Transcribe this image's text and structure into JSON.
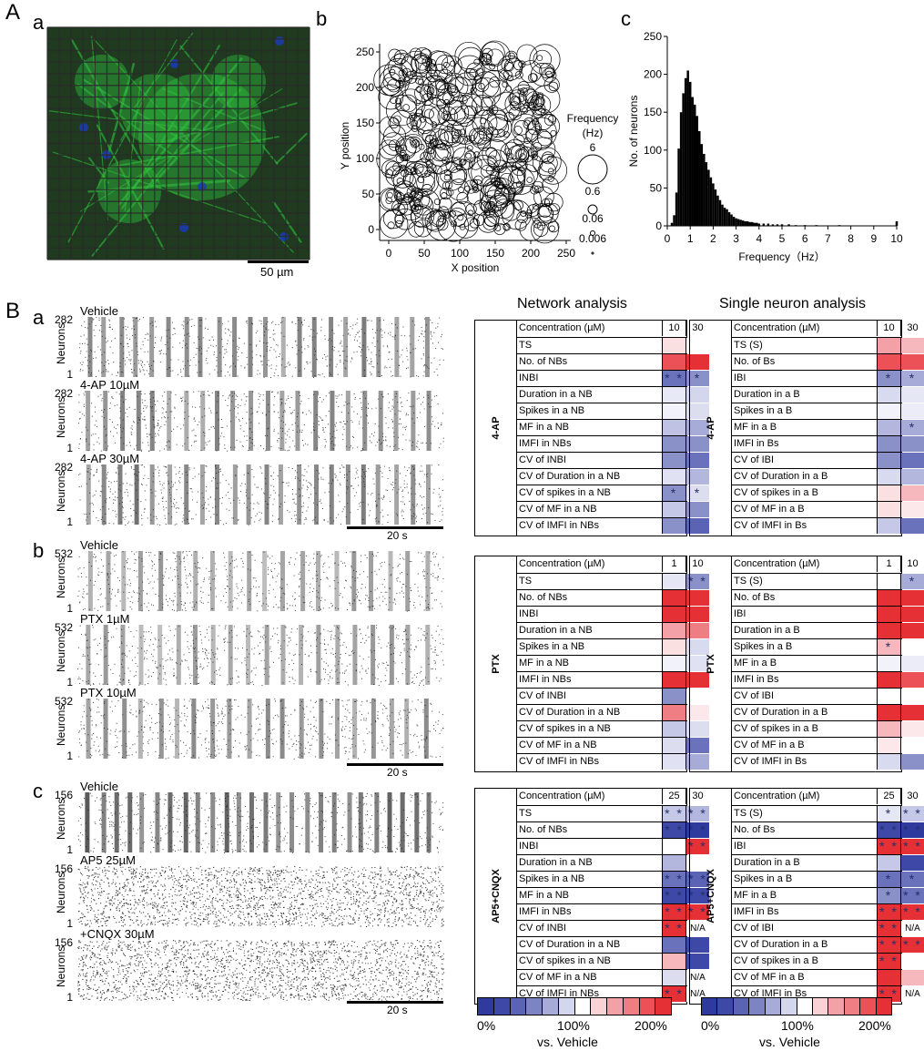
{
  "panels": {
    "A": "A",
    "Aa": "a",
    "Ab": "b",
    "Ac": "c",
    "B": "B",
    "Ba": "a",
    "Bb": "b",
    "Bc": "c"
  },
  "micrograph": {
    "scale_bar_label": "50 µm",
    "grid_color": "#2a2a2a",
    "fluor_color": "#2fbf3f",
    "nucleus_color": "#1a3cb4"
  },
  "bubble_plot": {
    "xlabel": "X position",
    "ylabel": "Y position",
    "xticks": [
      "0",
      "50",
      "100",
      "150",
      "200",
      "250"
    ],
    "yticks": [
      "0",
      "50",
      "100",
      "150",
      "200",
      "250"
    ],
    "legend_title": "Frequency",
    "legend_unit": "(Hz)",
    "legend_values": [
      "6",
      "0.6",
      "0.06",
      "0.006"
    ]
  },
  "chart_data": {
    "type": "bar",
    "title": "",
    "xlabel": "Frequency（Hz）",
    "ylabel": "No. of neurons",
    "xlim": [
      0,
      10
    ],
    "ylim": [
      0,
      250
    ],
    "xticks": [
      "0",
      "1",
      "2",
      "3",
      "4",
      "5",
      "6",
      "7",
      "8",
      "9",
      "10"
    ],
    "yticks": [
      "0",
      "50",
      "100",
      "150",
      "200",
      "250"
    ],
    "bin_width": 0.1,
    "x": [
      0.2,
      0.3,
      0.4,
      0.5,
      0.6,
      0.7,
      0.8,
      0.9,
      1.0,
      1.1,
      1.2,
      1.3,
      1.4,
      1.5,
      1.6,
      1.7,
      1.8,
      1.9,
      2.0,
      2.1,
      2.2,
      2.3,
      2.4,
      2.5,
      2.6,
      2.7,
      2.8,
      2.9,
      3.0,
      3.1,
      3.2,
      3.3,
      3.4,
      3.5,
      3.6,
      3.7,
      3.8,
      3.9,
      4.0,
      4.2,
      4.4,
      4.6,
      4.8,
      5.0,
      5.3,
      5.6,
      6.0,
      6.5,
      7.5,
      10.0
    ],
    "values": [
      4,
      14,
      44,
      102,
      150,
      175,
      195,
      205,
      190,
      170,
      160,
      145,
      125,
      108,
      95,
      84,
      74,
      64,
      56,
      48,
      40,
      34,
      28,
      24,
      22,
      18,
      15,
      12,
      10,
      9,
      8,
      7,
      6,
      6,
      5,
      5,
      4,
      4,
      3,
      3,
      3,
      2,
      2,
      2,
      2,
      1,
      1,
      1,
      1,
      6
    ]
  },
  "rasters": [
    {
      "label": "Vehicle",
      "top": "282",
      "bottom": "1",
      "axis": "Neurons"
    },
    {
      "label": "4-AP 10µM",
      "top": "282",
      "bottom": "1",
      "axis": "Neurons"
    },
    {
      "label": "4-AP 30µM",
      "top": "282",
      "bottom": "1",
      "axis": "Neurons"
    },
    {
      "label": "Vehicle",
      "top": "532",
      "bottom": "1",
      "axis": "Neurons"
    },
    {
      "label": "PTX 1µM",
      "top": "532",
      "bottom": "1",
      "axis": "Neurons"
    },
    {
      "label": "PTX 10µM",
      "top": "532",
      "bottom": "1",
      "axis": "Neurons"
    },
    {
      "label": "Vehicle",
      "top": "156",
      "bottom": "1",
      "axis": "Neurons"
    },
    {
      "label": "AP5 25µM",
      "top": "156",
      "bottom": "1",
      "axis": "Neurons"
    },
    {
      "label": "+CNQX 30µM",
      "top": "156",
      "bottom": "1",
      "axis": "Neurons"
    }
  ],
  "time_scale_label": "20 s",
  "headers": {
    "network": "Network analysis",
    "single": "Single neuron analysis"
  },
  "heatmaps": [
    {
      "drug": "4-AP",
      "conc_label": "Concentration (µM)",
      "c1": "10",
      "c2": "30",
      "rows": [
        {
          "label": "TS",
          "a": "#fbe0e2",
          "b": "#ffffff",
          "as": "",
          "bs": ""
        },
        {
          "label": "No. of NBs",
          "a": "#ec5158",
          "b": "#e53036",
          "as": "",
          "bs": ""
        },
        {
          "label": "INBI",
          "a": "#6a72bc",
          "b": "#8a90c8",
          "as": "* *",
          "bs": "*"
        },
        {
          "label": "Duration in a NB",
          "a": "#e8e9f6",
          "b": "#d4d6ed",
          "as": "",
          "bs": ""
        },
        {
          "label": "Spikes in a NB",
          "a": "#f2f2fa",
          "b": "#dcdef0",
          "as": "",
          "bs": ""
        },
        {
          "label": "MF in a NB",
          "a": "#bfc2e2",
          "b": "#a7abd8",
          "as": "",
          "bs": ""
        },
        {
          "label": "IMFI in NBs",
          "a": "#8a90c8",
          "b": "#8a90c8",
          "as": "",
          "bs": ""
        },
        {
          "label": "CV of INBI",
          "a": "#8a90c8",
          "b": "#6a72bc",
          "as": "",
          "bs": ""
        },
        {
          "label": "CV of Duration in a NB",
          "a": "#e0e1f2",
          "b": "#b3b7dd",
          "as": "",
          "bs": ""
        },
        {
          "label": "CV of spikes in a NB",
          "a": "#8a90c8",
          "b": "#dcdef0",
          "as": "*",
          "bs": "*"
        },
        {
          "label": "CV of MF in a NB",
          "a": "#c5c8e6",
          "b": "#8a90c8",
          "as": "",
          "bs": ""
        },
        {
          "label": "CV of IMFI in NBs",
          "a": "#8a90c8",
          "b": "#5a63b4",
          "as": "",
          "bs": ""
        }
      ]
    },
    {
      "drug": "4-AP",
      "conc_label": "Concentration (µM)",
      "c1": "10",
      "c2": "30",
      "rows": [
        {
          "label": "TS (S)",
          "a": "#f3a1a7",
          "b": "#f6b8bc",
          "as": "",
          "bs": ""
        },
        {
          "label": "No. of Bs",
          "a": "#ec5158",
          "b": "#ec5158",
          "as": "",
          "bs": ""
        },
        {
          "label": "IBI",
          "a": "#8a90c8",
          "b": "#a7abd8",
          "as": "*",
          "bs": "*"
        },
        {
          "label": "Duration in a B",
          "a": "#d8daf0",
          "b": "#e6e7f5",
          "as": "",
          "bs": ""
        },
        {
          "label": "Spikes in a B",
          "a": "#f2f2fa",
          "b": "#ebecf7",
          "as": "",
          "bs": ""
        },
        {
          "label": "MF in a B",
          "a": "#b3b7dd",
          "b": "#a7abd8",
          "as": "",
          "bs": "*"
        },
        {
          "label": "IMFI in Bs",
          "a": "#8a90c8",
          "b": "#8a90c8",
          "as": "",
          "bs": ""
        },
        {
          "label": "CV of IBI",
          "a": "#8a90c8",
          "b": "#6a72bc",
          "as": "",
          "bs": ""
        },
        {
          "label": "CV of Duration in a B",
          "a": "#d8daf0",
          "b": "#b3b7dd",
          "as": "",
          "bs": ""
        },
        {
          "label": "CV of spikes in a B",
          "a": "#fbe0e2",
          "b": "#f6b8bc",
          "as": "",
          "bs": ""
        },
        {
          "label": "CV of MF in a B",
          "a": "#fbe0e2",
          "b": "#fce8ea",
          "as": "",
          "bs": ""
        },
        {
          "label": "CV of IMFI in Bs",
          "a": "#c5c8e6",
          "b": "#6a72bc",
          "as": "",
          "bs": ""
        }
      ]
    },
    {
      "drug": "PTX",
      "conc_label": "Concentration (µM)",
      "c1": "1",
      "c2": "10",
      "rows": [
        {
          "label": "TS",
          "a": "#e6e7f5",
          "b": "#8a90c8",
          "as": "",
          "bs": "* *"
        },
        {
          "label": "No. of NBs",
          "a": "#e53036",
          "b": "#e53036",
          "as": "",
          "bs": ""
        },
        {
          "label": "INBI",
          "a": "#e53036",
          "b": "#e53036",
          "as": "",
          "bs": ""
        },
        {
          "label": "Duration in a NB",
          "a": "#f3a1a7",
          "b": "#ef7d84",
          "as": "",
          "bs": ""
        },
        {
          "label": "Spikes in a NB",
          "a": "#fbe0e2",
          "b": "#d8daf0",
          "as": "",
          "bs": ""
        },
        {
          "label": "MF in a NB",
          "a": "#f2f2fa",
          "b": "#e0e1f2",
          "as": "",
          "bs": ""
        },
        {
          "label": "IMFI in NBs",
          "a": "#e53036",
          "b": "#e53036",
          "as": "",
          "bs": ""
        },
        {
          "label": "CV of INBI",
          "a": "#8a90c8",
          "b": "#ffffff",
          "as": "",
          "bs": ""
        },
        {
          "label": "CV of Duration in a NB",
          "a": "#ef7d84",
          "b": "#fce8ea",
          "as": "",
          "bs": ""
        },
        {
          "label": "CV of spikes in a NB",
          "a": "#c5c8e6",
          "b": "#dcdef0",
          "as": "",
          "bs": ""
        },
        {
          "label": "CV of MF in a NB",
          "a": "#dcdef0",
          "b": "#6a72bc",
          "as": "",
          "bs": ""
        },
        {
          "label": "CV of IMFI in NBs",
          "a": "#e0e1f2",
          "b": "#a7abd8",
          "as": "",
          "bs": ""
        }
      ]
    },
    {
      "drug": "PTX",
      "conc_label": "Concentration (µM)",
      "c1": "1",
      "c2": "10",
      "rows": [
        {
          "label": "TS (S)",
          "a": "#ffffff",
          "b": "#a7abd8",
          "as": "",
          "bs": "*"
        },
        {
          "label": "No. of Bs",
          "a": "#e53036",
          "b": "#e53036",
          "as": "",
          "bs": ""
        },
        {
          "label": "IBI",
          "a": "#e53036",
          "b": "#e53036",
          "as": "",
          "bs": ""
        },
        {
          "label": "Duration in a B",
          "a": "#e53036",
          "b": "#e53036",
          "as": "",
          "bs": ""
        },
        {
          "label": "Spikes in a B",
          "a": "#f6b8bc",
          "b": "#ffffff",
          "as": "*",
          "bs": ""
        },
        {
          "label": "MF in a B",
          "a": "#f2f2fa",
          "b": "#ebecf7",
          "as": "",
          "bs": ""
        },
        {
          "label": "IMFI in Bs",
          "a": "#e53036",
          "b": "#ec5158",
          "as": "",
          "bs": ""
        },
        {
          "label": "CV of IBI",
          "a": "#ffffff",
          "b": "#ffffff",
          "as": "",
          "bs": ""
        },
        {
          "label": "CV of Duration in a B",
          "a": "#e53036",
          "b": "#e53036",
          "as": "",
          "bs": ""
        },
        {
          "label": "CV of spikes in a B",
          "a": "#f6b8bc",
          "b": "#fce8ea",
          "as": "",
          "bs": ""
        },
        {
          "label": "CV of MF in a B",
          "a": "#fce8ea",
          "b": "#ffffff",
          "as": "",
          "bs": ""
        },
        {
          "label": "CV of IMFI in Bs",
          "a": "#d8daf0",
          "b": "#8a90c8",
          "as": "",
          "bs": ""
        }
      ]
    },
    {
      "drug": "AP5+CNQX",
      "conc_label": "Concentration (µM)",
      "c1": "25",
      "c2": "30",
      "rows": [
        {
          "label": "TS",
          "a": "#c5c8e6",
          "b": "#b3b7dd",
          "as": "* *",
          "bs": "* *"
        },
        {
          "label": "No. of NBs",
          "a": "#3e48a6",
          "b": "#2f3a9e",
          "as": "* *",
          "bs": "* *"
        },
        {
          "label": "INBI",
          "a": "#ffffff",
          "b": "#e53036",
          "as": "",
          "bs": "* *"
        },
        {
          "label": "Duration in a NB",
          "a": "#b3b7dd",
          "b": "#ffffff",
          "as": "",
          "bs": ""
        },
        {
          "label": "Spikes in a NB",
          "a": "#6a72bc",
          "b": "#5a63b4",
          "as": "* *",
          "bs": "* *"
        },
        {
          "label": "MF in a NB",
          "a": "#3e48a6",
          "b": "#3e48a6",
          "as": "* *",
          "bs": "* *"
        },
        {
          "label": "IMFI in NBs",
          "a": "#e53036",
          "b": "#e53036",
          "as": "* *",
          "bs": "* *"
        },
        {
          "label": "CV of INBI",
          "a": "#e53036",
          "b": "#ffffff",
          "as": "* *",
          "bs": "N/A"
        },
        {
          "label": "CV of Duration in a NB",
          "a": "#6a72bc",
          "b": "#3e48a6",
          "as": "",
          "bs": ""
        },
        {
          "label": "CV of spikes in a NB",
          "a": "#f6b8bc",
          "b": "#3e48a6",
          "as": "",
          "bs": ""
        },
        {
          "label": "CV of MF in a NB",
          "a": "#dcdef0",
          "b": "#ffffff",
          "as": "",
          "bs": "N/A"
        },
        {
          "label": "CV of IMFI in NBs",
          "a": "#e53036",
          "b": "#ffffff",
          "as": "* *",
          "bs": "N/A"
        }
      ]
    },
    {
      "drug": "AP5+CNQX",
      "conc_label": "Concentration (µM)",
      "c1": "25",
      "c2": "30",
      "rows": [
        {
          "label": "TS (S)",
          "a": "#e6e7f5",
          "b": "#c5c8e6",
          "as": "*",
          "bs": "* *"
        },
        {
          "label": "No. of Bs",
          "a": "#3e48a6",
          "b": "#2f3a9e",
          "as": "* *",
          "bs": "* *"
        },
        {
          "label": "IBI",
          "a": "#e53036",
          "b": "#e53036",
          "as": "* *",
          "bs": "* *"
        },
        {
          "label": "Duration in a B",
          "a": "#c5c8e6",
          "b": "#3e48a6",
          "as": "",
          "bs": ""
        },
        {
          "label": "Spikes in a B",
          "a": "#6a72bc",
          "b": "#6a72bc",
          "as": "*",
          "bs": "*"
        },
        {
          "label": "MF in a B",
          "a": "#8a90c8",
          "b": "#6a72bc",
          "as": "*",
          "bs": "* *"
        },
        {
          "label": "IMFI in Bs",
          "a": "#e53036",
          "b": "#e53036",
          "as": "* *",
          "bs": "* *"
        },
        {
          "label": "CV of IBI",
          "a": "#e53036",
          "b": "#ffffff",
          "as": "* *",
          "bs": "N/A"
        },
        {
          "label": "CV of Duration in a B",
          "a": "#e53036",
          "b": "#e53036",
          "as": "* *",
          "bs": "* *"
        },
        {
          "label": "CV of spikes in a B",
          "a": "#e53036",
          "b": "#ffffff",
          "as": "* *",
          "bs": ""
        },
        {
          "label": "CV of MF in a B",
          "a": "#e53036",
          "b": "#f6b8bc",
          "as": "",
          "bs": ""
        },
        {
          "label": "CV of IMFI in Bs",
          "a": "#e53036",
          "b": "#ffffff",
          "as": "* *",
          "bs": "N/A"
        }
      ]
    }
  ],
  "color_scale": {
    "colors": [
      "#2f3a9e",
      "#3e48a6",
      "#5a63b4",
      "#7d84c4",
      "#a7abd8",
      "#d4d6ed",
      "#ffffff",
      "#f9d2d5",
      "#f3a1a7",
      "#ef7d84",
      "#ec5158",
      "#e53036"
    ],
    "min": "0%",
    "mid": "100%",
    "max": "200%",
    "caption": "vs. Vehicle"
  }
}
